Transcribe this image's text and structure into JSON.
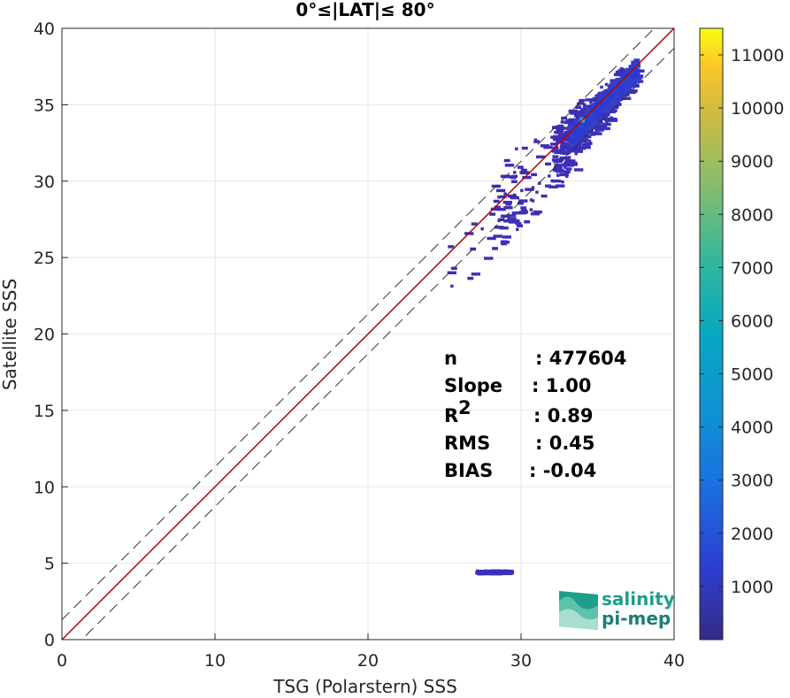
{
  "chart_data": {
    "type": "heatmap",
    "title": "0°≤|LAT|≤ 80°",
    "xlabel": "TSG (Polarstern) SSS",
    "ylabel": "Satellite SSS",
    "xlim": [
      0,
      40
    ],
    "ylim": [
      0,
      40
    ],
    "xticks": [
      "0",
      "10",
      "20",
      "30",
      "40"
    ],
    "yticks": [
      "0",
      "5",
      "10",
      "15",
      "20",
      "25",
      "30",
      "35",
      "40"
    ],
    "grid": true,
    "reference_lines": {
      "identity": {
        "slope": 1,
        "intercept": 0,
        "color": "#c00000"
      },
      "upper_bound": {
        "slope": 1,
        "intercept": 1.3,
        "style": "dashed"
      },
      "lower_bound": {
        "slope": 1,
        "intercept": -1.3,
        "style": "dashed"
      }
    },
    "density_clusters": [
      {
        "x": [
          33,
          37.5
        ],
        "y": [
          32,
          37.5
        ],
        "level": "high"
      },
      {
        "x": [
          32,
          36
        ],
        "y": [
          30,
          35.5
        ],
        "level": "medium"
      },
      {
        "x": [
          28,
          34
        ],
        "y": [
          24,
          33
        ],
        "level": "low"
      },
      {
        "x": [
          25,
          31
        ],
        "y": [
          20,
          28
        ],
        "level": "sparse"
      },
      {
        "x": [
          27,
          29
        ],
        "y": [
          4.4,
          4.6
        ],
        "level": "low"
      }
    ],
    "peak": {
      "x": 34,
      "y": 34,
      "count": 11500
    },
    "colorbar": {
      "min": 0,
      "max": 11500,
      "ticks": [
        "1000",
        "2000",
        "3000",
        "4000",
        "5000",
        "6000",
        "7000",
        "8000",
        "9000",
        "10000",
        "11000"
      ],
      "colormap": "parula"
    },
    "stats": [
      {
        "label": "n",
        "value": ": 477604"
      },
      {
        "label": "Slope",
        "value": ": 1.00"
      },
      {
        "label": "R",
        "sup": "2",
        "value": ": 0.89"
      },
      {
        "label": "RMS",
        "value": ": 0.45"
      },
      {
        "label": "BIAS",
        "value": ": -0.04"
      }
    ]
  },
  "logo": {
    "line1": "salinity",
    "line2": "pi-mep"
  }
}
